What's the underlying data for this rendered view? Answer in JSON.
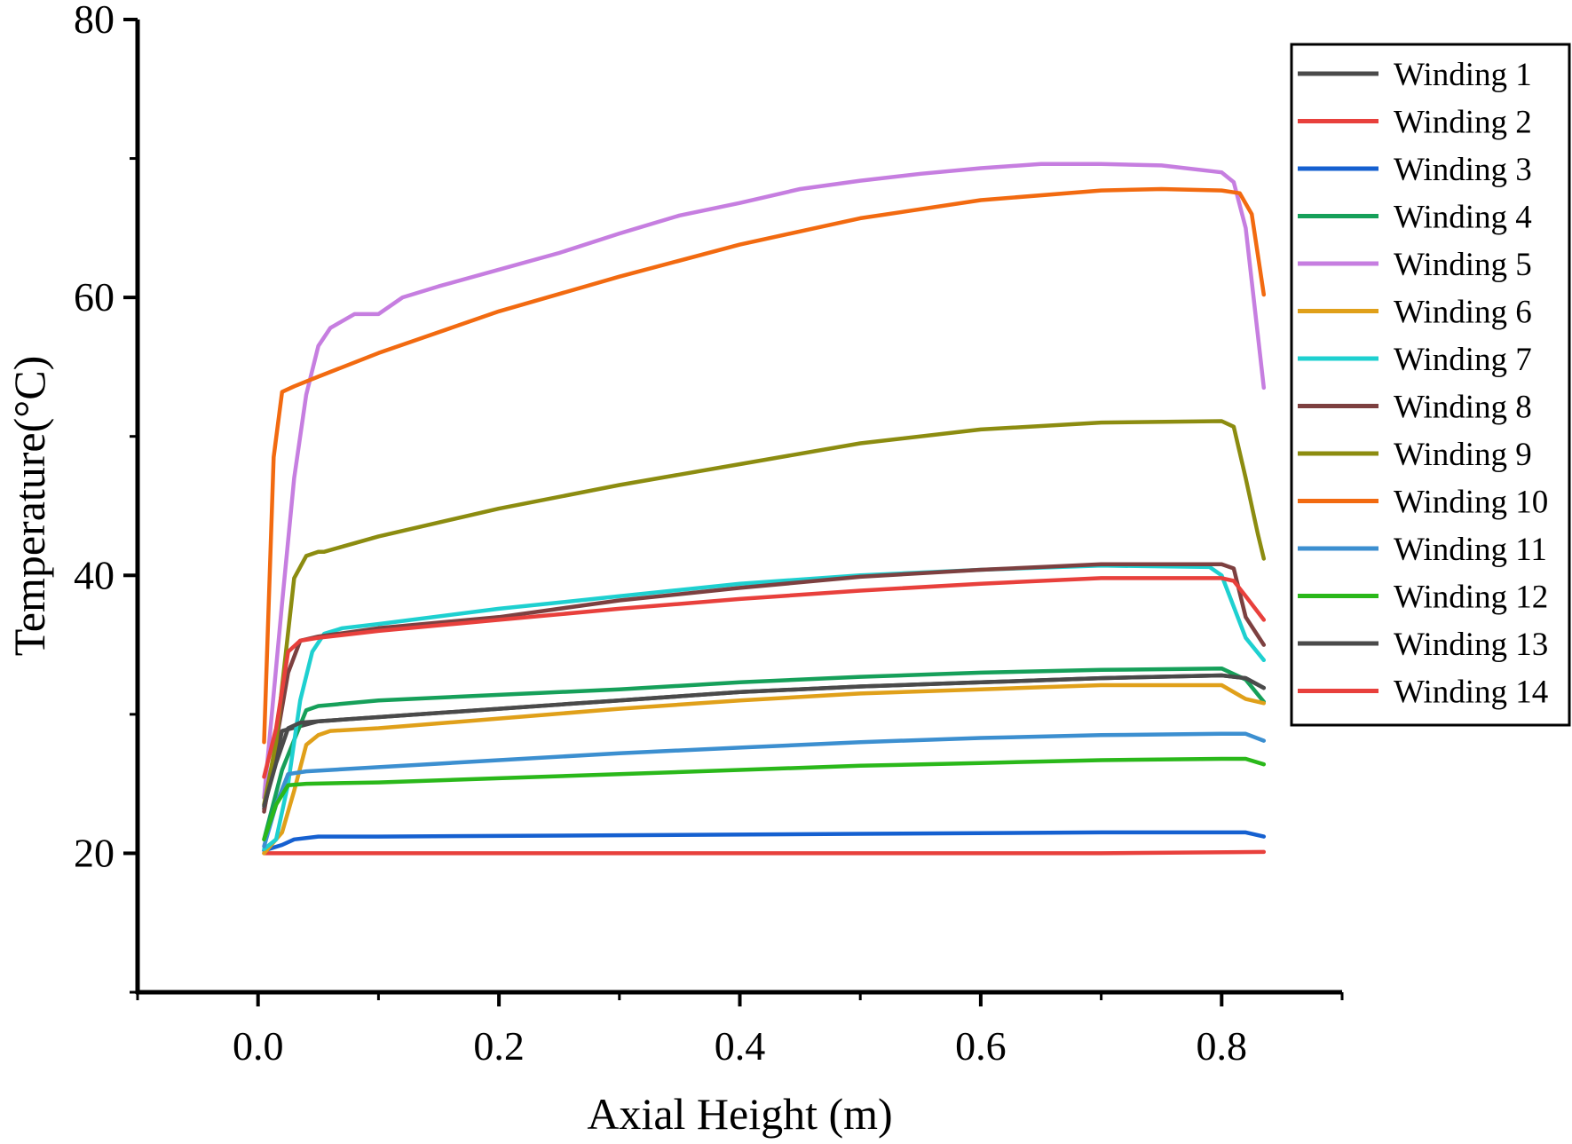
{
  "chart_data": {
    "type": "line",
    "title": "",
    "xlabel": "Axial Height (m)",
    "ylabel": "Temperature(°C)",
    "xlim": [
      -0.1,
      0.9
    ],
    "ylim": [
      10,
      80
    ],
    "xticks": [
      0.0,
      0.2,
      0.4,
      0.6,
      0.8
    ],
    "xtick_labels": [
      "0.0",
      "0.2",
      "0.4",
      "0.6",
      "0.8"
    ],
    "yticks": [
      20,
      40,
      60,
      80
    ],
    "ytick_labels": [
      "20",
      "40",
      "60",
      "80"
    ],
    "grid": false,
    "legend_position": "top-right",
    "series": [
      {
        "name": "Winding 1",
        "color": "#4a4a4a",
        "x": [
          0.005,
          0.02,
          0.05,
          0.1,
          0.2,
          0.3,
          0.4,
          0.5,
          0.6,
          0.7,
          0.8,
          0.82,
          0.835
        ],
        "y": [
          23.2,
          28.8,
          29.5,
          29.8,
          30.4,
          31.0,
          31.6,
          32.0,
          32.3,
          32.6,
          32.8,
          32.6,
          31.9
        ]
      },
      {
        "name": "Winding 2",
        "color": "#e8403c",
        "x": [
          0.005,
          0.1,
          0.3,
          0.5,
          0.7,
          0.835
        ],
        "y": [
          20.0,
          20.0,
          20.0,
          20.0,
          20.0,
          20.1
        ]
      },
      {
        "name": "Winding 3",
        "color": "#1560d0",
        "x": [
          0.005,
          0.02,
          0.03,
          0.05,
          0.1,
          0.3,
          0.5,
          0.7,
          0.82,
          0.835
        ],
        "y": [
          20.2,
          20.6,
          21.0,
          21.2,
          21.2,
          21.3,
          21.4,
          21.5,
          21.5,
          21.2
        ]
      },
      {
        "name": "Winding 4",
        "color": "#16a05a",
        "x": [
          0.005,
          0.02,
          0.04,
          0.05,
          0.1,
          0.2,
          0.3,
          0.4,
          0.5,
          0.6,
          0.7,
          0.8,
          0.82,
          0.835
        ],
        "y": [
          21.0,
          26.0,
          30.3,
          30.6,
          31.0,
          31.4,
          31.8,
          32.3,
          32.7,
          33.0,
          33.2,
          33.3,
          32.5,
          30.9
        ]
      },
      {
        "name": "Winding 5",
        "color": "#c67ee0",
        "x": [
          0.005,
          0.02,
          0.03,
          0.04,
          0.05,
          0.06,
          0.08,
          0.1,
          0.12,
          0.15,
          0.2,
          0.25,
          0.3,
          0.35,
          0.4,
          0.45,
          0.5,
          0.55,
          0.6,
          0.65,
          0.7,
          0.75,
          0.8,
          0.81,
          0.82,
          0.835
        ],
        "y": [
          24.0,
          38.0,
          47.0,
          53.0,
          56.5,
          57.8,
          58.8,
          58.8,
          60.0,
          60.8,
          62.0,
          63.2,
          64.6,
          65.9,
          66.8,
          67.8,
          68.4,
          68.9,
          69.3,
          69.6,
          69.6,
          69.5,
          69.0,
          68.3,
          65.0,
          53.5
        ]
      },
      {
        "name": "Winding 6",
        "color": "#e0a01a",
        "x": [
          0.005,
          0.02,
          0.03,
          0.04,
          0.05,
          0.06,
          0.1,
          0.2,
          0.3,
          0.4,
          0.5,
          0.6,
          0.7,
          0.8,
          0.82,
          0.835
        ],
        "y": [
          20.0,
          21.5,
          24.5,
          27.8,
          28.5,
          28.8,
          29.0,
          29.7,
          30.4,
          31.0,
          31.5,
          31.8,
          32.1,
          32.1,
          31.1,
          30.8
        ]
      },
      {
        "name": "Winding 7",
        "color": "#1ed0d0",
        "x": [
          0.005,
          0.015,
          0.025,
          0.035,
          0.045,
          0.055,
          0.07,
          0.1,
          0.2,
          0.3,
          0.4,
          0.5,
          0.6,
          0.7,
          0.79,
          0.8,
          0.82,
          0.835
        ],
        "y": [
          20.3,
          21.0,
          25.0,
          31.0,
          34.5,
          35.8,
          36.2,
          36.5,
          37.6,
          38.5,
          39.4,
          40.0,
          40.4,
          40.7,
          40.6,
          40.0,
          35.5,
          33.9
        ]
      },
      {
        "name": "Winding 8",
        "color": "#7d4040",
        "x": [
          0.005,
          0.015,
          0.025,
          0.035,
          0.05,
          0.1,
          0.2,
          0.3,
          0.4,
          0.5,
          0.6,
          0.7,
          0.8,
          0.81,
          0.82,
          0.835
        ],
        "y": [
          23.0,
          28.0,
          33.0,
          35.3,
          35.6,
          36.2,
          37.0,
          38.2,
          39.1,
          39.9,
          40.4,
          40.8,
          40.8,
          40.5,
          37.0,
          35.0
        ]
      },
      {
        "name": "Winding 9",
        "color": "#8c8c10",
        "x": [
          0.005,
          0.015,
          0.02,
          0.03,
          0.04,
          0.05,
          0.055,
          0.1,
          0.2,
          0.3,
          0.4,
          0.5,
          0.6,
          0.7,
          0.8,
          0.81,
          0.82,
          0.83,
          0.835
        ],
        "y": [
          23.5,
          28.0,
          32.0,
          39.8,
          41.4,
          41.7,
          41.7,
          42.8,
          44.8,
          46.5,
          48.0,
          49.5,
          50.5,
          51.0,
          51.1,
          50.7,
          47.0,
          43.0,
          41.2
        ]
      },
      {
        "name": "Winding 10",
        "color": "#f26a10",
        "x": [
          0.005,
          0.013,
          0.02,
          0.03,
          0.05,
          0.1,
          0.2,
          0.3,
          0.4,
          0.5,
          0.6,
          0.7,
          0.75,
          0.8,
          0.815,
          0.825,
          0.835
        ],
        "y": [
          28.0,
          48.5,
          53.2,
          53.6,
          54.3,
          56.0,
          59.0,
          61.5,
          63.8,
          65.7,
          67.0,
          67.7,
          67.8,
          67.7,
          67.5,
          66.0,
          60.2
        ]
      },
      {
        "name": "Winding 11",
        "color": "#3c8fd0",
        "x": [
          0.005,
          0.015,
          0.025,
          0.04,
          0.1,
          0.2,
          0.3,
          0.4,
          0.5,
          0.6,
          0.7,
          0.8,
          0.82,
          0.835
        ],
        "y": [
          20.5,
          23.5,
          25.7,
          25.9,
          26.2,
          26.7,
          27.2,
          27.6,
          28.0,
          28.3,
          28.5,
          28.6,
          28.6,
          28.1
        ]
      },
      {
        "name": "Winding 12",
        "color": "#2ab81a",
        "x": [
          0.005,
          0.015,
          0.025,
          0.04,
          0.1,
          0.2,
          0.3,
          0.4,
          0.5,
          0.6,
          0.7,
          0.8,
          0.82,
          0.835
        ],
        "y": [
          21.0,
          23.5,
          24.9,
          25.0,
          25.1,
          25.4,
          25.7,
          26.0,
          26.3,
          26.5,
          26.7,
          26.8,
          26.8,
          26.4
        ]
      },
      {
        "name": "Winding 13",
        "color": "#4a4a4a",
        "x": [
          0.005,
          0.015,
          0.025,
          0.035,
          0.05,
          0.1,
          0.2,
          0.3,
          0.4,
          0.5,
          0.6,
          0.7,
          0.8,
          0.82,
          0.835
        ],
        "y": [
          23.4,
          26.5,
          29.0,
          29.4,
          29.5,
          29.8,
          30.4,
          31.0,
          31.6,
          32.0,
          32.3,
          32.6,
          32.8,
          32.6,
          31.9
        ]
      },
      {
        "name": "Winding 14",
        "color": "#e8403c",
        "x": [
          0.005,
          0.015,
          0.025,
          0.035,
          0.05,
          0.1,
          0.2,
          0.3,
          0.4,
          0.5,
          0.6,
          0.7,
          0.8,
          0.81,
          0.82,
          0.835
        ],
        "y": [
          25.5,
          29.0,
          34.5,
          35.3,
          35.5,
          36.0,
          36.8,
          37.6,
          38.3,
          38.9,
          39.4,
          39.8,
          39.8,
          39.6,
          38.5,
          36.8
        ]
      }
    ]
  }
}
